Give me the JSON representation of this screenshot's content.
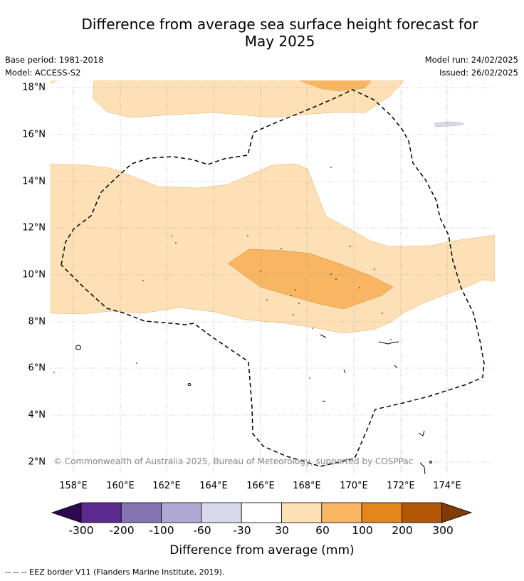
{
  "title_line1": "Difference from average sea surface height forecast for",
  "title_line2": "May 2025",
  "meta": {
    "base_period": "Base period: 1981-2018",
    "model": "Model: ACCESS-S2",
    "model_run": "Model run: 24/02/2025",
    "issued": "Issued: 26/02/2025"
  },
  "copyright": "© Commonwealth of Australia 2025, Bureau of Meteorology, supported by COSPPac",
  "lat_labels": [
    "18°N",
    "16°N",
    "14°N",
    "12°N",
    "10°N",
    "8°N",
    "6°N",
    "4°N",
    "2°N"
  ],
  "lon_labels": [
    "158°E",
    "160°E",
    "162°E",
    "164°E",
    "166°E",
    "168°E",
    "170°E",
    "172°E",
    "174°E"
  ],
  "colorbar": {
    "label": "Difference from average (mm)",
    "ticks": [
      "-300",
      "-200",
      "-100",
      "-60",
      "-30",
      "30",
      "60",
      "100",
      "200",
      "300"
    ],
    "colors": [
      "#2d0a4e",
      "#5c2a8f",
      "#8474b0",
      "#b1a8d3",
      "#d9d9ec",
      "#ffffff",
      "#fde0b5",
      "#f9b662",
      "#e3861b",
      "#b35806",
      "#7f3b08"
    ]
  },
  "footnote": "--  --  -- EEZ border V11 (Flanders Marine Institute, 2019)."
}
